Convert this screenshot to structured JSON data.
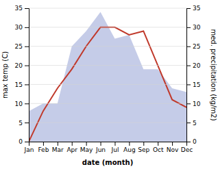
{
  "chart_data": {
    "type": "line",
    "categories": [
      "Jan",
      "Feb",
      "Mar",
      "Apr",
      "May",
      "Jun",
      "Jul",
      "Aug",
      "Sep",
      "Oct",
      "Nov",
      "Dec"
    ],
    "series": [
      {
        "type": "area",
        "axis": "y2",
        "color": "#c5cce8",
        "values": [
          8,
          10,
          10,
          25,
          29,
          34,
          27,
          28,
          19,
          19,
          14,
          13
        ]
      },
      {
        "type": "line",
        "color": "#c0392b",
        "values": [
          0,
          8,
          14,
          19,
          25,
          30,
          30,
          28,
          29,
          20,
          11,
          9
        ]
      }
    ],
    "xlabel": "date (month)",
    "ylabel": "max temp (C)",
    "y2label": "med. precipitation (kg/m2)",
    "ylim": [
      0,
      35
    ],
    "yticks": [
      0,
      5,
      10,
      15,
      20,
      25,
      30,
      35
    ],
    "y2lim": [
      0,
      35
    ],
    "y2ticks": [
      0,
      5,
      10,
      15,
      20,
      25,
      30,
      35
    ],
    "grid": true
  }
}
